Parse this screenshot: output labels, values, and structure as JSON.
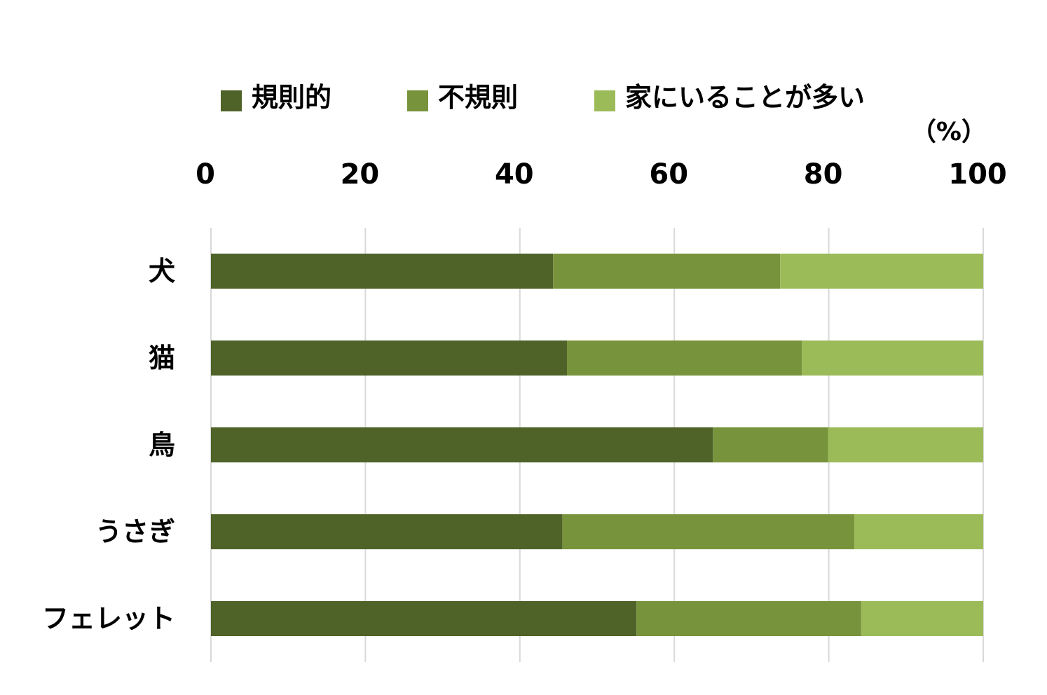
{
  "chart_data": {
    "type": "bar",
    "orientation": "horizontal",
    "stacked": true,
    "unit": "（%）",
    "categories": [
      "犬",
      "猫",
      "鳥",
      "うさぎ",
      "フェレット"
    ],
    "series": [
      {
        "name": "規則的",
        "color": "#4f6228",
        "values": [
          44.3,
          46.1,
          65.0,
          45.5,
          55.1
        ]
      },
      {
        "name": "不規則",
        "color": "#77933c",
        "values": [
          29.4,
          30.4,
          14.9,
          37.8,
          29.1
        ]
      },
      {
        "name": "家にいることが多い",
        "color": "#9bbb59",
        "values": [
          26.3,
          23.5,
          20.1,
          16.7,
          15.8
        ]
      }
    ],
    "xlim": [
      0,
      100
    ],
    "xticks": [
      "0",
      "20",
      "40",
      "60",
      "80",
      "100"
    ],
    "grid": true,
    "legend_position": "top"
  }
}
